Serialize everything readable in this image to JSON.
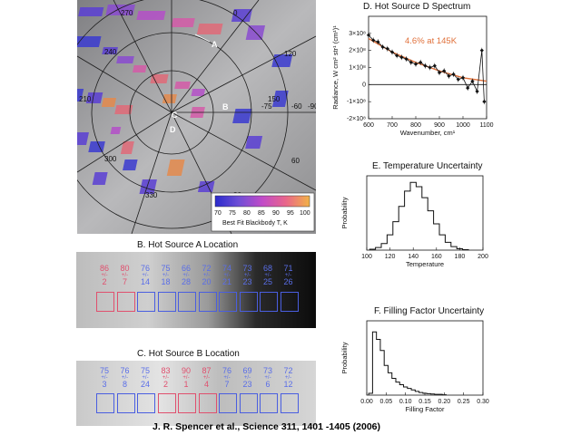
{
  "map": {
    "lon_labels": [
      "270",
      "0",
      "240",
      "120",
      "210",
      "150",
      "300",
      "60",
      "330",
      "30"
    ],
    "lat_labels": [
      "-75",
      "-60",
      "-90"
    ],
    "markers": [
      "A",
      "B",
      "C",
      "D"
    ],
    "colorbar": {
      "ticks": [
        "70",
        "75",
        "80",
        "85",
        "90",
        "95",
        "100"
      ],
      "label": "Best Fit Blackbody T, K"
    }
  },
  "panel_b": {
    "title": "B. Hot Source A Location",
    "labels": [
      {
        "top": "86",
        "mid": "+/-",
        "bot": "2",
        "hot": true
      },
      {
        "top": "80",
        "mid": "+/-",
        "bot": "7",
        "hot": true
      },
      {
        "top": "76",
        "mid": "+/-",
        "bot": "14",
        "hot": false
      },
      {
        "top": "75",
        "mid": "+/-",
        "bot": "18",
        "hot": false
      },
      {
        "top": "66",
        "mid": "+/-",
        "bot": "28",
        "hot": false
      },
      {
        "top": "72",
        "mid": "+/-",
        "bot": "20",
        "hot": false
      },
      {
        "top": "74",
        "mid": "+/-",
        "bot": "21",
        "hot": false
      },
      {
        "top": "73",
        "mid": "+/-",
        "bot": "23",
        "hot": false
      },
      {
        "top": "68",
        "mid": "+/-",
        "bot": "25",
        "hot": false
      },
      {
        "top": "71",
        "mid": "+/-",
        "bot": "26",
        "hot": false
      }
    ]
  },
  "panel_c": {
    "title": "C. Hot Source B Location",
    "labels": [
      {
        "top": "75",
        "mid": "+/-",
        "bot": "3",
        "hot": false
      },
      {
        "top": "76",
        "mid": "+/-",
        "bot": "8",
        "hot": false
      },
      {
        "top": "75",
        "mid": "+/-",
        "bot": "24",
        "hot": false
      },
      {
        "top": "83",
        "mid": "+/-",
        "bot": "2",
        "hot": true
      },
      {
        "top": "90",
        "mid": "+/-",
        "bot": "1",
        "hot": true
      },
      {
        "top": "87",
        "mid": "+/-",
        "bot": "4",
        "hot": true
      },
      {
        "top": "76",
        "mid": "+/-",
        "bot": "7",
        "hot": false
      },
      {
        "top": "69",
        "mid": "+/-",
        "bot": "23",
        "hot": false
      },
      {
        "top": "73",
        "mid": "+/-",
        "bot": "6",
        "hot": false
      },
      {
        "top": "72",
        "mid": "+/-",
        "bot": "12",
        "hot": false
      }
    ]
  },
  "panel_d": {
    "title": "D. Hot Source D Spectrum",
    "annotation": "4.6% at  145K",
    "ylabel": "Radiance, W cm² str¹ (cm¹)¹",
    "xlabel": "Wavenumber, cm¹",
    "y_ticks": [
      "3×10⁸",
      "2×10⁸",
      "1×10⁸",
      "0",
      "-1×10⁸",
      "-2×10⁸"
    ],
    "x_ticks": [
      "600",
      "700",
      "800",
      "900",
      "1000",
      "1100"
    ]
  },
  "panel_e": {
    "title": "E. Temperature Uncertainty",
    "ylabel": "Probability",
    "xlabel": "Temperature",
    "x_ticks": [
      "100",
      "120",
      "140",
      "160",
      "180",
      "200"
    ]
  },
  "panel_f": {
    "title": "F. Filling Factor Uncertainty",
    "ylabel": "Probability",
    "xlabel": "Filling Factor",
    "x_ticks": [
      "0.00",
      "0.05",
      "0.10",
      "0.15",
      "0.20",
      "0.25",
      "0.30"
    ]
  },
  "citation": "J. R.  Spencer et al.,  Science  311, 1401 -1405 (2006)",
  "chart_data": [
    {
      "type": "line",
      "title": "D. Hot Source D Spectrum",
      "xlabel": "Wavenumber, cm¹",
      "ylabel": "Radiance, W cm² str¹ (cm¹)¹",
      "xlim": [
        600,
        1100
      ],
      "ylim": [
        -2e-08,
        4e-08
      ],
      "grid": false,
      "series": [
        {
          "x": [
            600,
            620,
            640,
            660,
            680,
            700,
            720,
            740,
            760,
            780,
            800,
            820,
            840,
            860,
            880,
            900,
            920,
            940,
            960,
            980,
            1000,
            1020,
            1040,
            1060,
            1080,
            1090
          ],
          "y": [
            2.9e-08,
            2.6e-08,
            2.5e-08,
            2.2e-08,
            2.1e-08,
            1.9e-08,
            1.7e-08,
            1.6e-08,
            1.5e-08,
            1.3e-08,
            1.2e-08,
            1.3e-08,
            1.1e-08,
            1e-08,
            1.1e-08,
            7e-09,
            8e-09,
            5e-09,
            6e-09,
            3e-09,
            4e-09,
            -2e-09,
            2e-09,
            -4e-09,
            2e-08,
            -1e-08
          ]
        },
        {
          "x": [
            600,
            700,
            800,
            900,
            1000,
            1100
          ],
          "y": [
            2.7e-08,
            1.9e-08,
            1.3e-08,
            8e-09,
            4e-09,
            2e-09
          ]
        }
      ]
    },
    {
      "type": "bar",
      "title": "E. Temperature Uncertainty",
      "xlabel": "Temperature",
      "ylabel": "Probability",
      "xlim": [
        100,
        200
      ],
      "ylim": [
        0,
        0.17
      ],
      "grid": false,
      "categories": [
        "105",
        "110",
        "115",
        "120",
        "125",
        "130",
        "135",
        "140",
        "145",
        "150",
        "155",
        "160",
        "165",
        "170",
        "175",
        "180",
        "185"
      ],
      "values": [
        0.002,
        0.006,
        0.015,
        0.035,
        0.065,
        0.1,
        0.135,
        0.155,
        0.145,
        0.12,
        0.09,
        0.06,
        0.035,
        0.018,
        0.008,
        0.003,
        0.001
      ]
    },
    {
      "type": "bar",
      "title": "F. Filling Factor Uncertainty",
      "xlabel": "Filling Factor",
      "ylabel": "Probability",
      "xlim": [
        0,
        0.3
      ],
      "ylim": [
        0,
        0.2
      ],
      "grid": false,
      "categories": [
        "0.01",
        "0.02",
        "0.03",
        "0.04",
        "0.05",
        "0.06",
        "0.07",
        "0.08",
        "0.09",
        "0.10",
        "0.11",
        "0.12",
        "0.13",
        "0.14",
        "0.15",
        "0.16",
        "0.17",
        "0.18",
        "0.19",
        "0.20"
      ],
      "values": [
        0.005,
        0.17,
        0.15,
        0.12,
        0.08,
        0.06,
        0.045,
        0.035,
        0.028,
        0.022,
        0.018,
        0.014,
        0.01,
        0.007,
        0.005,
        0.004,
        0.003,
        0.002,
        0.002,
        0.001
      ]
    }
  ]
}
